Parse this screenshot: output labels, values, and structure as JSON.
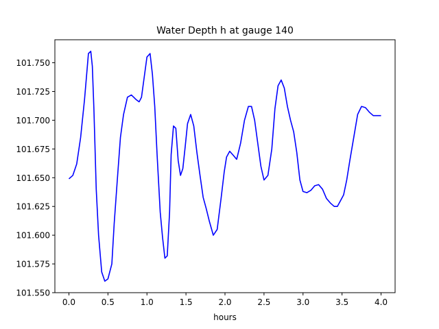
{
  "chart_data": {
    "type": "line",
    "title": "Water Depth h at gauge 140",
    "xlabel": "hours",
    "ylabel": "",
    "xlim": [
      -0.18,
      4.18
    ],
    "ylim": [
      101.55,
      101.77
    ],
    "grid": false,
    "legend": "none",
    "x_ticks": [
      0.0,
      0.5,
      1.0,
      1.5,
      2.0,
      2.5,
      3.0,
      3.5,
      4.0
    ],
    "x_tick_labels": [
      "0.0",
      "0.5",
      "1.0",
      "1.5",
      "2.0",
      "2.5",
      "3.0",
      "3.5",
      "4.0"
    ],
    "y_ticks": [
      101.55,
      101.575,
      101.6,
      101.625,
      101.65,
      101.675,
      101.7,
      101.725,
      101.75
    ],
    "y_tick_labels": [
      "101.550",
      "101.575",
      "101.600",
      "101.625",
      "101.650",
      "101.675",
      "101.700",
      "101.725",
      "101.750"
    ],
    "series": [
      {
        "color": "#0000ff",
        "x": [
          0.0,
          0.05,
          0.1,
          0.15,
          0.2,
          0.25,
          0.28,
          0.3,
          0.32,
          0.35,
          0.38,
          0.42,
          0.46,
          0.5,
          0.55,
          0.58,
          0.62,
          0.66,
          0.7,
          0.75,
          0.8,
          0.83,
          0.86,
          0.9,
          0.93,
          0.96,
          1.0,
          1.04,
          1.07,
          1.1,
          1.13,
          1.17,
          1.2,
          1.23,
          1.26,
          1.29,
          1.31,
          1.34,
          1.37,
          1.4,
          1.43,
          1.46,
          1.49,
          1.52,
          1.56,
          1.6,
          1.64,
          1.68,
          1.72,
          1.76,
          1.8,
          1.85,
          1.9,
          1.95,
          1.99,
          2.02,
          2.06,
          2.1,
          2.15,
          2.2,
          2.25,
          2.3,
          2.34,
          2.38,
          2.42,
          2.46,
          2.5,
          2.55,
          2.6,
          2.64,
          2.68,
          2.72,
          2.76,
          2.8,
          2.84,
          2.88,
          2.92,
          2.96,
          3.0,
          3.05,
          3.1,
          3.15,
          3.2,
          3.25,
          3.3,
          3.35,
          3.4,
          3.44,
          3.48,
          3.52,
          3.56,
          3.6,
          3.65,
          3.7,
          3.75,
          3.8,
          3.85,
          3.9,
          3.93,
          3.96,
          4.0
        ],
        "y": [
          101.649,
          101.652,
          101.662,
          101.685,
          101.718,
          101.758,
          101.76,
          101.747,
          101.71,
          101.64,
          101.6,
          101.568,
          101.56,
          101.562,
          101.575,
          101.61,
          101.648,
          101.685,
          101.705,
          101.72,
          101.722,
          101.72,
          101.718,
          101.716,
          101.72,
          101.735,
          101.755,
          101.758,
          101.74,
          101.712,
          101.67,
          101.62,
          101.598,
          101.58,
          101.582,
          101.62,
          101.67,
          101.695,
          101.693,
          101.665,
          101.652,
          101.658,
          101.677,
          101.697,
          101.705,
          101.695,
          101.672,
          101.652,
          101.633,
          101.623,
          101.612,
          101.6,
          101.605,
          101.632,
          101.655,
          101.668,
          101.673,
          101.67,
          101.666,
          101.68,
          101.7,
          101.712,
          101.712,
          101.7,
          101.68,
          101.66,
          101.648,
          101.652,
          101.675,
          101.71,
          101.73,
          101.735,
          101.728,
          101.712,
          101.7,
          101.69,
          101.672,
          101.648,
          101.638,
          101.637,
          101.639,
          101.643,
          101.644,
          101.64,
          101.632,
          101.628,
          101.625,
          101.625,
          101.63,
          101.635,
          101.648,
          101.665,
          101.685,
          101.705,
          101.712,
          101.711,
          101.707,
          101.704,
          101.704,
          101.704,
          101.704
        ]
      }
    ]
  }
}
